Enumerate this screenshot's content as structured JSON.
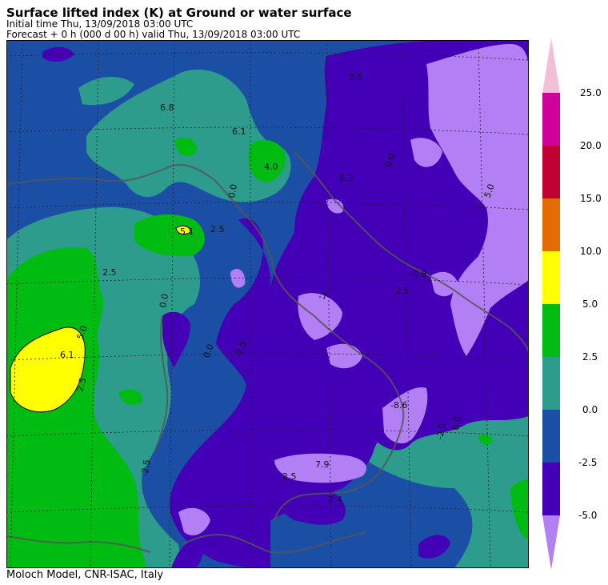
{
  "header": {
    "title": "Surface lifted index (K) at Ground or water surface",
    "initial_time": "Initial time  Thu, 13/09/2018  03:00 UTC",
    "forecast": "Forecast  +   0 h  (000 d 00 h)  valid Thu, 13/09/2018 03:00 UTC"
  },
  "footer": {
    "credit": "Moloch Model, CNR-ISAC, Italy"
  },
  "colorbar": {
    "ticks": [
      "25.0",
      "20.0",
      "15.0",
      "10.0",
      "5.0",
      "2.5",
      "0.0",
      "-2.5",
      "-5.0"
    ],
    "colors": {
      "below_-5": "#b27ff5",
      "-5_-2.5": "#4300b6",
      "-2.5_0": "#1b4fa6",
      "0_2.5": "#2e9c8c",
      "2.5_5": "#00bb11",
      "5_10": "#ffff00",
      "10_15": "#e36b00",
      "15_20": "#c00030",
      "20_25": "#d0009a",
      "above_25": "#f3bfd6"
    }
  },
  "map": {
    "contour_labels": [
      {
        "id": "wmed-6-1",
        "text": "6.1"
      },
      {
        "id": "wmed-5-0",
        "text": "5.0"
      },
      {
        "id": "wmed-2-5-a",
        "text": "2.5"
      },
      {
        "id": "wmed-2-5-b",
        "text": "2.5"
      },
      {
        "id": "liguria-5-1",
        "text": "5.1"
      },
      {
        "id": "alps-4-0",
        "text": "4.0"
      },
      {
        "id": "alps-6-8",
        "text": "6.8"
      },
      {
        "id": "alps-6-1",
        "text": "6.1"
      },
      {
        "id": "alps-0-0",
        "text": "0.0"
      },
      {
        "id": "po-2-5",
        "text": "2.5"
      },
      {
        "id": "balkan-6-3",
        "text": "-6.3"
      },
      {
        "id": "balkan-2-5",
        "text": "2.5"
      },
      {
        "id": "balkan-0-0",
        "text": "0.0"
      },
      {
        "id": "balkan-5-0",
        "text": "5.0"
      },
      {
        "id": "adriatic-m0-8",
        "text": "-0.8"
      },
      {
        "id": "adriatic-m2-5",
        "text": "-2.5"
      },
      {
        "id": "italy-m7",
        "text": "-7"
      },
      {
        "id": "tyrr-m2-5",
        "text": "-2.5"
      },
      {
        "id": "sardinia-0-0",
        "text": "0.0"
      },
      {
        "id": "south-8-6",
        "text": "-8.6"
      },
      {
        "id": "ionian-m2-5",
        "text": "-2.5"
      },
      {
        "id": "ionian-0-0",
        "text": "0.0"
      },
      {
        "id": "sicily-7-9",
        "text": "7.9"
      },
      {
        "id": "sicily-2-5",
        "text": "2.5"
      },
      {
        "id": "malta-2-4",
        "text": "2.4"
      },
      {
        "id": "tunis-2-5",
        "text": "-2.5"
      },
      {
        "id": "balear-0-0",
        "text": "0.0"
      }
    ]
  }
}
